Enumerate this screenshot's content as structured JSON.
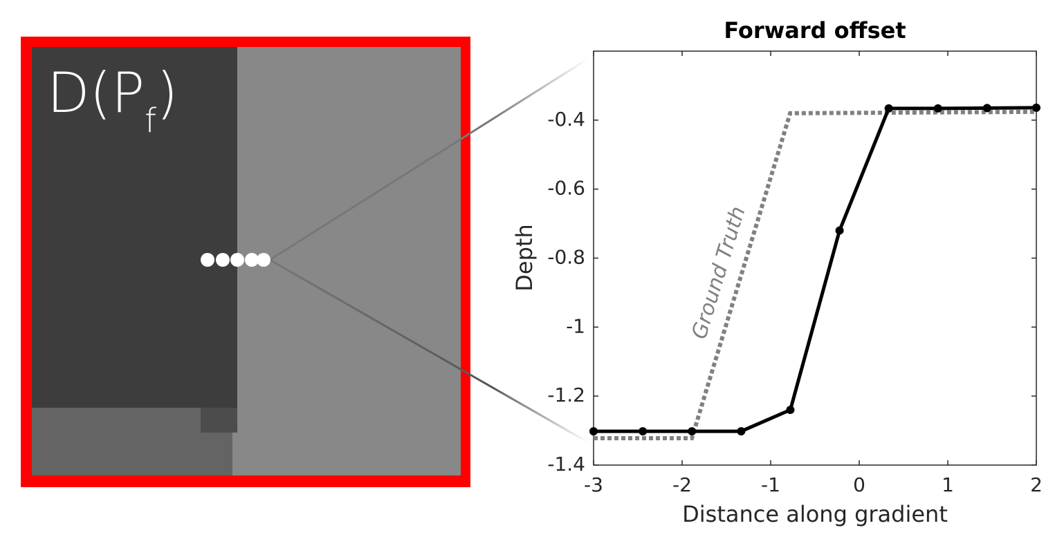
{
  "image_panel": {
    "label": "D(P",
    "subscript": "f",
    "label_end": ")"
  },
  "chart_data": {
    "type": "line",
    "title": "Forward offset",
    "x_label": "Distance along gradient",
    "y_label": "Depth",
    "xlim": [
      -3,
      2
    ],
    "ylim": [
      -1.4,
      -0.2
    ],
    "xticks": [
      -3,
      -2,
      -1,
      0,
      1,
      2
    ],
    "yticks": [
      -1.4,
      -1.2,
      -1,
      -0.8,
      -0.6,
      -0.4
    ],
    "series": [
      {
        "color": "#000000",
        "markers": true,
        "dashed": false,
        "x": [
          -3,
          -2.444,
          -1.889,
          -1.333,
          -0.778,
          -0.222,
          0.333,
          0.889,
          1.444,
          2
        ],
        "values": [
          -1.302,
          -1.302,
          -1.302,
          -1.302,
          -1.24,
          -0.72,
          -0.366,
          -0.366,
          -0.365,
          -0.364
        ]
      },
      {
        "name": "Ground Truth",
        "color": "#808080",
        "markers": false,
        "dashed": true,
        "x": [
          -3,
          -1.89,
          -0.78,
          2
        ],
        "values": [
          -1.322,
          -1.322,
          -0.38,
          -0.376
        ]
      }
    ]
  }
}
